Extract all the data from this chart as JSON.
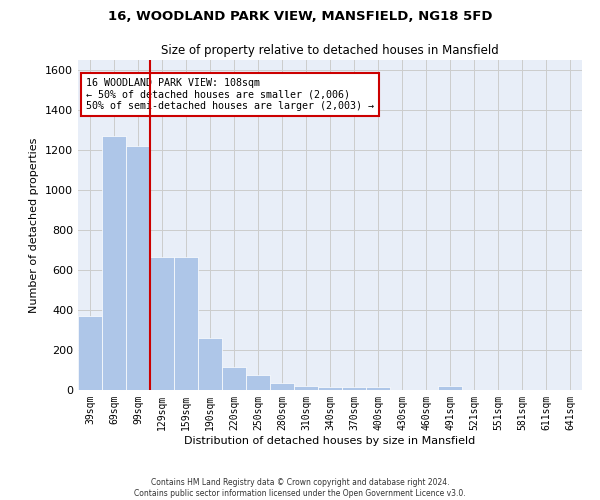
{
  "title": "16, WOODLAND PARK VIEW, MANSFIELD, NG18 5FD",
  "subtitle": "Size of property relative to detached houses in Mansfield",
  "xlabel": "Distribution of detached houses by size in Mansfield",
  "ylabel": "Number of detached properties",
  "footer_line1": "Contains HM Land Registry data © Crown copyright and database right 2024.",
  "footer_line2": "Contains public sector information licensed under the Open Government Licence v3.0.",
  "bar_labels": [
    "39sqm",
    "69sqm",
    "99sqm",
    "129sqm",
    "159sqm",
    "190sqm",
    "220sqm",
    "250sqm",
    "280sqm",
    "310sqm",
    "340sqm",
    "370sqm",
    "400sqm",
    "430sqm",
    "460sqm",
    "491sqm",
    "521sqm",
    "551sqm",
    "581sqm",
    "611sqm",
    "641sqm"
  ],
  "bar_values": [
    370,
    1270,
    1220,
    665,
    665,
    260,
    115,
    75,
    35,
    22,
    15,
    15,
    15,
    0,
    0,
    20,
    0,
    0,
    0,
    0,
    0
  ],
  "bar_color": "#aec6e8",
  "bar_edgecolor": "white",
  "vline_x_index": 2,
  "vline_color": "#cc0000",
  "ylim": [
    0,
    1650
  ],
  "yticks": [
    0,
    200,
    400,
    600,
    800,
    1000,
    1200,
    1400,
    1600
  ],
  "annotation_title": "16 WOODLAND PARK VIEW: 108sqm",
  "annotation_line1": "← 50% of detached houses are smaller (2,006)",
  "annotation_line2": "50% of semi-detached houses are larger (2,003) →",
  "annotation_box_color": "#ffffff",
  "annotation_box_edgecolor": "#cc0000",
  "grid_color": "#cccccc",
  "background_color": "#e8eef8"
}
